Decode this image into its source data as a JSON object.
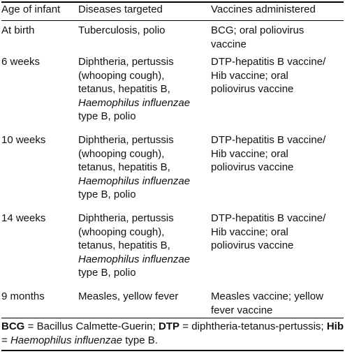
{
  "table": {
    "header": [
      "Age of infant",
      "Diseases targeted",
      "Vaccines administered"
    ],
    "rows": [
      [
        [
          "At birth"
        ],
        [
          "Tuberculosis, polio"
        ],
        [
          "BCG; oral poliovirus",
          "vaccine"
        ]
      ],
      [
        [
          "6 weeks"
        ],
        [
          "Diphtheria, pertussis",
          "(whooping cough),",
          "tetanus, hepatitis B,",
          "Haemophilus influenzae",
          "type B, polio"
        ],
        [
          "DTP-hepatitis B vaccine/",
          "Hib vaccine; oral",
          "poliovirus vaccine"
        ]
      ],
      [
        [
          "10 weeks"
        ],
        [
          "Diphtheria, pertussis",
          "(whooping cough),",
          "tetanus, hepatitis B,",
          "Haemophilus influenzae",
          "type B, polio"
        ],
        [
          "DTP-hepatitis B vaccine/",
          "Hib vaccine; oral",
          "poliovirus vaccine"
        ]
      ],
      [
        [
          "14 weeks"
        ],
        [
          "Diphtheria, pertussis",
          "(whooping cough),",
          "tetanus, hepatitis B,",
          "Haemophilus influenzae",
          "type B, polio"
        ],
        [
          "DTP-hepatitis B vaccine/",
          "Hib vaccine; oral",
          "poliovirus vaccine"
        ]
      ],
      [
        [
          "9 months"
        ],
        [
          "Measles, yellow fever"
        ],
        [
          "Measles vaccine; yellow",
          "fever vaccine"
        ]
      ]
    ]
  },
  "footnote": [
    "BCG",
    " = Bacillus Calmette-Guerin; ",
    "DTP",
    " = diphtheria-tetanus-pertussis; ",
    "Hib",
    " = ",
    "Haemophilus influenzae",
    " type B."
  ]
}
